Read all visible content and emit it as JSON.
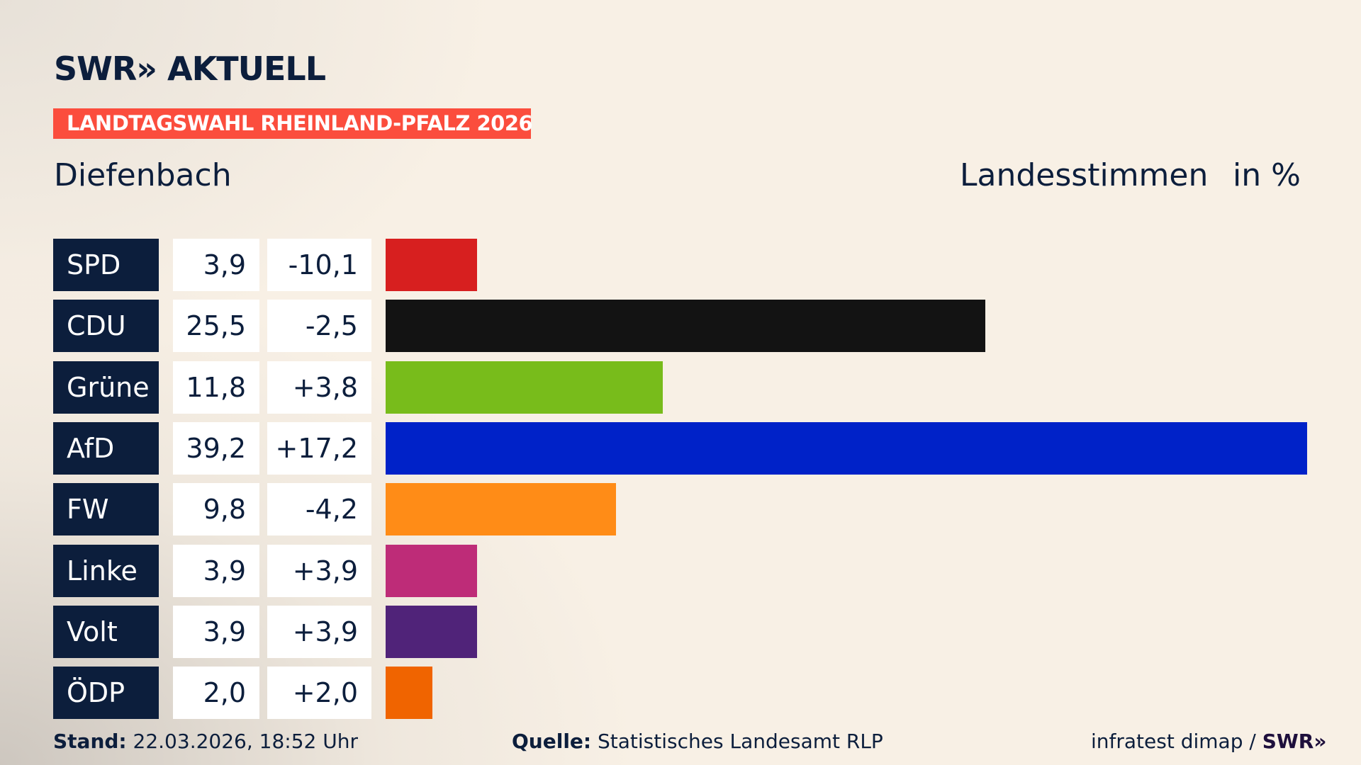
{
  "header": {
    "logo": "SWR» AKTUELL",
    "banner": "LANDTAGSWAHL RHEINLAND-PFALZ 2026",
    "place": "Diefenbach",
    "metric": "Landesstimmen",
    "unit": "in %"
  },
  "chart_data": {
    "type": "bar",
    "orientation": "horizontal",
    "categories": [
      "SPD",
      "CDU",
      "Grüne",
      "AfD",
      "FW",
      "Linke",
      "Volt",
      "ÖDP"
    ],
    "values": [
      3.9,
      25.5,
      11.8,
      39.2,
      9.8,
      3.9,
      3.9,
      2.0
    ],
    "value_labels": [
      "3,9",
      "25,5",
      "11,8",
      "39,2",
      "9,8",
      "3,9",
      "3,9",
      "2,0"
    ],
    "change_labels": [
      "-10,1",
      "-2,5",
      "+3,8",
      "+17,2",
      "-4,2",
      "+3,9",
      "+3,9",
      "+2,0"
    ],
    "colors": [
      "#d71f1f",
      "#131313",
      "#78bc1b",
      "#0022c8",
      "#ff8c17",
      "#be2c78",
      "#502379",
      "#f06400"
    ],
    "xlim": [
      0,
      39.2
    ],
    "grid": false
  },
  "footer": {
    "stand_label": "Stand:",
    "stand_value": "22.03.2026, 18:52 Uhr",
    "source_label": "Quelle:",
    "source_value": "Statistisches Landesamt RLP",
    "credit": "infratest dimap /",
    "credit_logo": "SWR»"
  }
}
